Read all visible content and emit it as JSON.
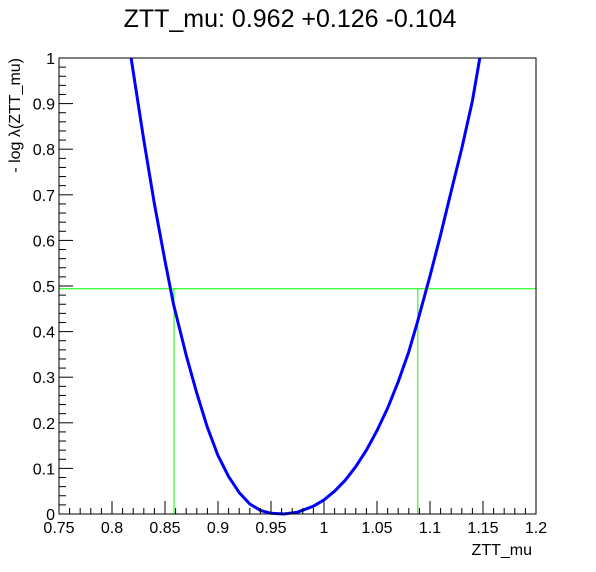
{
  "chart_data": {
    "type": "line",
    "title": "ZTT_mu: 0.962 +0.126 -0.104",
    "xlabel": "ZTT_mu",
    "ylabel": "- log λ(ZTT_mu)",
    "xlim": [
      0.75,
      1.2
    ],
    "ylim": [
      0,
      1
    ],
    "x_ticks": [
      "0.75",
      "0.8",
      "0.85",
      "0.9",
      "0.95",
      "1",
      "1.05",
      "1.1",
      "1.15",
      "1.2"
    ],
    "y_ticks": [
      "0",
      "0.1",
      "0.2",
      "0.3",
      "0.4",
      "0.5",
      "0.6",
      "0.7",
      "0.8",
      "0.9",
      "1"
    ],
    "grid": false,
    "series": [
      {
        "color": "#0000ff",
        "x": [
          0.818,
          0.83,
          0.84,
          0.85,
          0.858,
          0.87,
          0.88,
          0.89,
          0.9,
          0.91,
          0.92,
          0.93,
          0.94,
          0.95,
          0.962,
          0.975,
          0.99,
          1.0,
          1.01,
          1.02,
          1.03,
          1.04,
          1.05,
          1.06,
          1.07,
          1.08,
          1.088,
          1.1,
          1.11,
          1.12,
          1.13,
          1.14,
          1.147
        ],
        "y": [
          1.0,
          0.82,
          0.68,
          0.555,
          0.46,
          0.348,
          0.265,
          0.19,
          0.128,
          0.082,
          0.047,
          0.022,
          0.008,
          0.0015,
          0.0,
          0.004,
          0.017,
          0.031,
          0.05,
          0.074,
          0.104,
          0.14,
          0.183,
          0.232,
          0.29,
          0.356,
          0.42,
          0.522,
          0.612,
          0.708,
          0.802,
          0.906,
          1.0
        ]
      }
    ],
    "threshold": {
      "y": 0.494,
      "x_low": 0.8585,
      "x_high": 1.0885,
      "color": "#00ff00"
    }
  }
}
